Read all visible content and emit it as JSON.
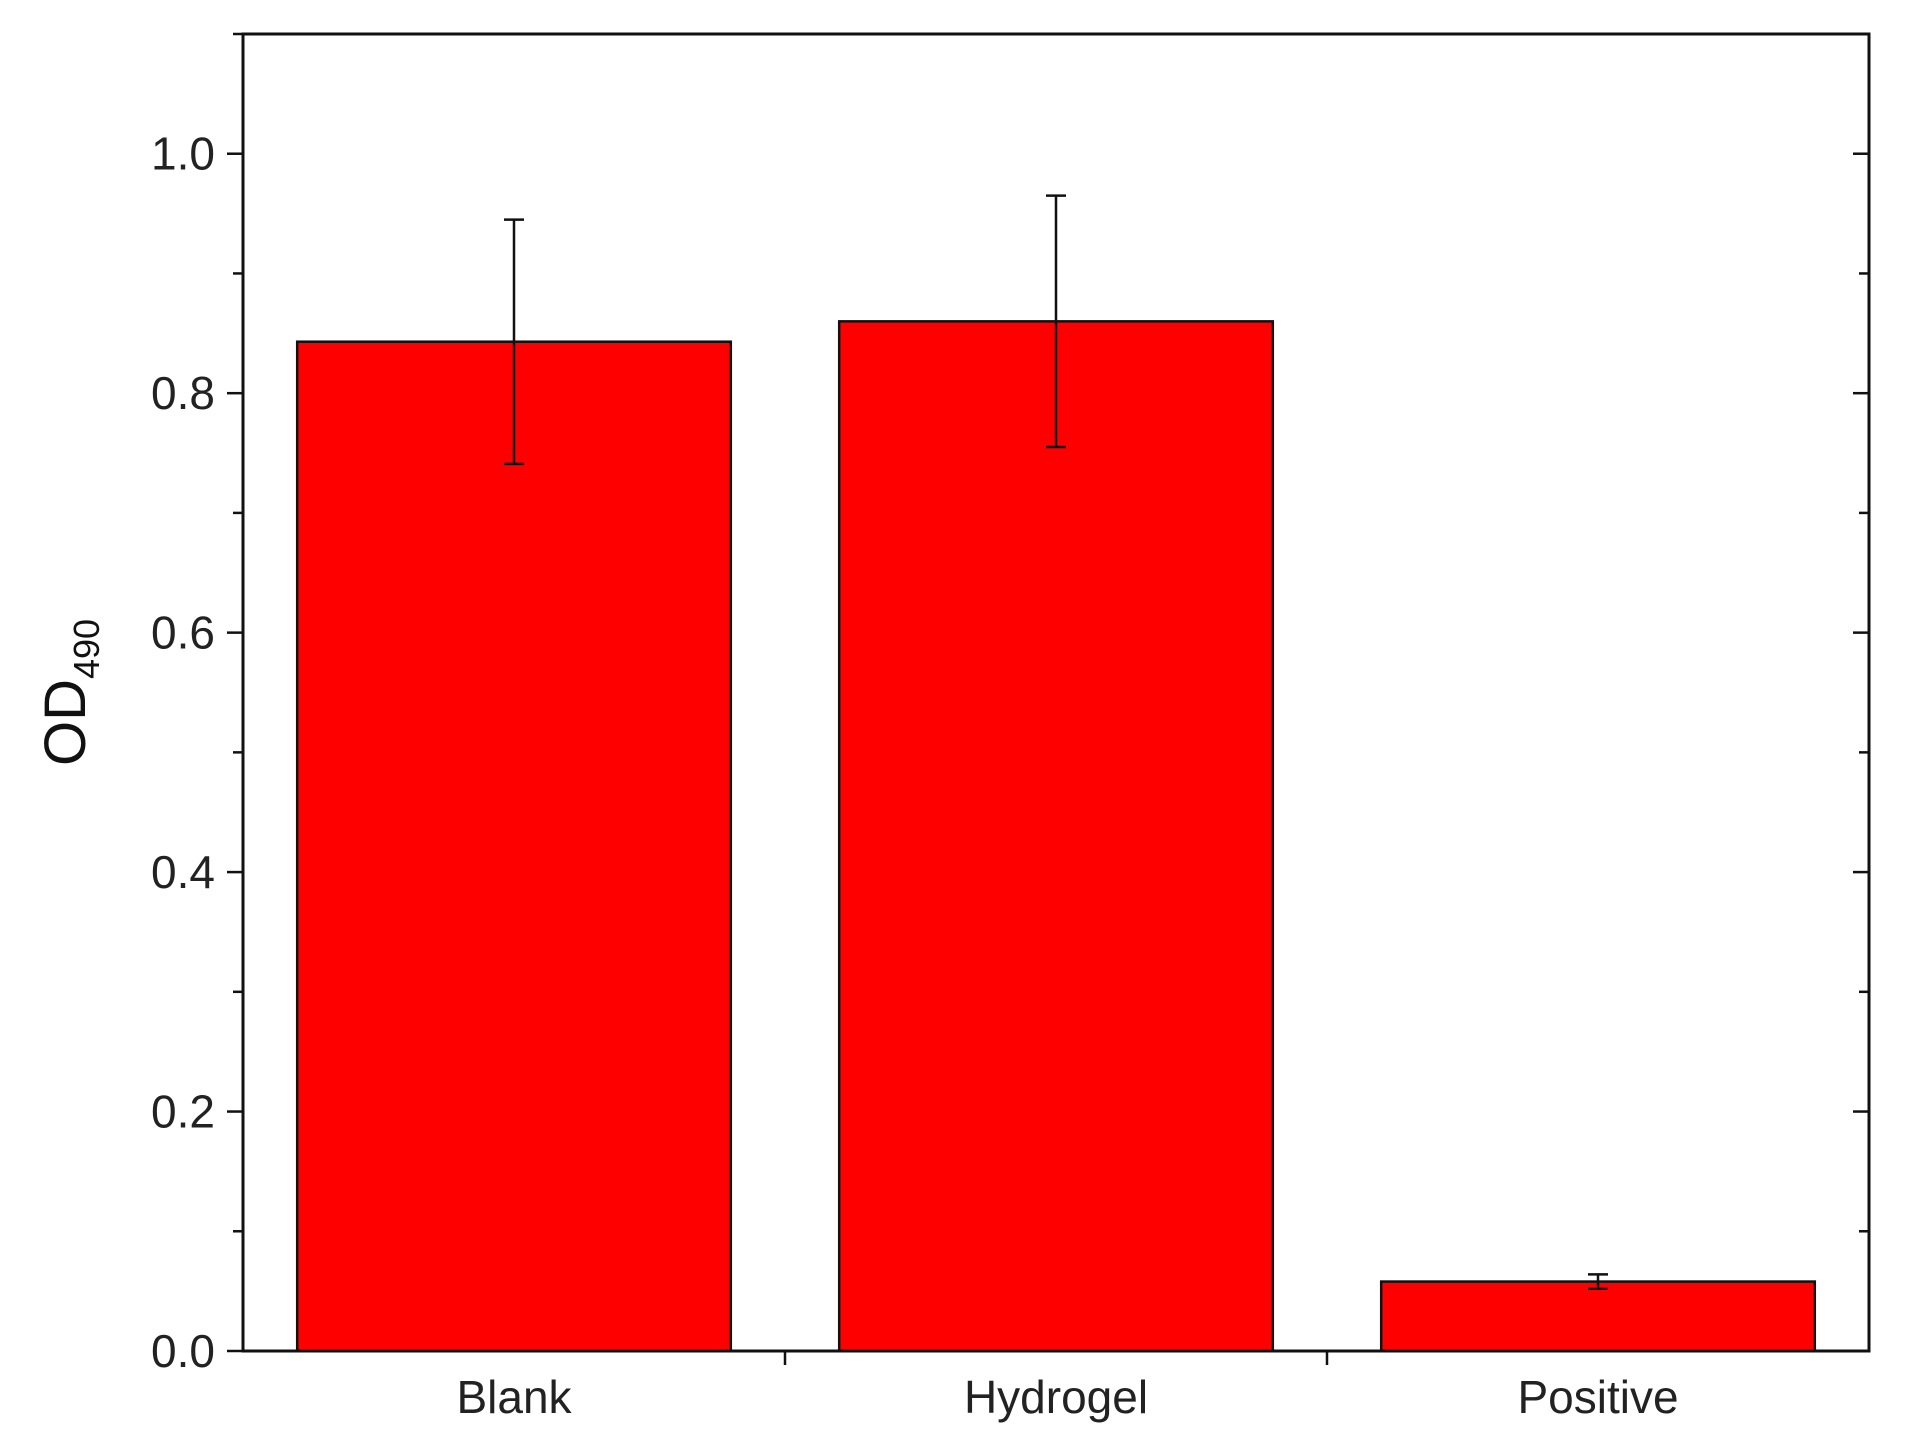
{
  "chart_data": {
    "type": "bar",
    "categories": [
      "Blank",
      "Hydrogel",
      "Positive"
    ],
    "values": [
      0.843,
      0.86,
      0.058
    ],
    "errors": [
      0.102,
      0.105,
      0.006
    ],
    "ylabel": "OD",
    "ylabel_subscript": "490",
    "xlabel": "",
    "ylim": [
      0,
      1.1
    ],
    "yticks": [
      0.0,
      0.2,
      0.4,
      0.6,
      0.8,
      1.0
    ],
    "ytick_labels": [
      "0.0",
      "0.2",
      "0.4",
      "0.6",
      "0.8",
      "1.0"
    ],
    "bar_color": "#ff0000",
    "grid": false,
    "legend": "none"
  }
}
